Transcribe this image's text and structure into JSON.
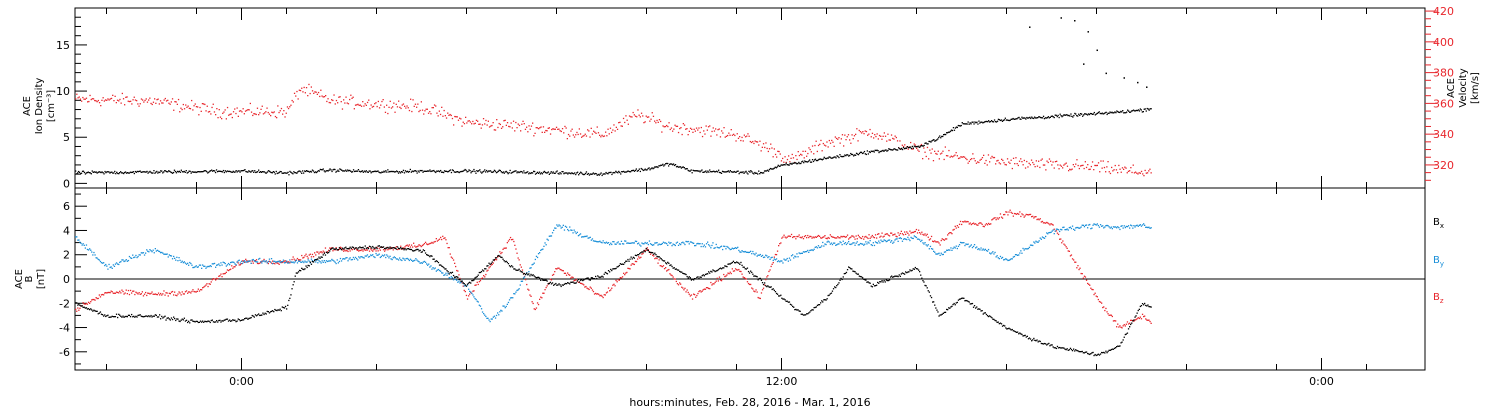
{
  "xlabel": "hours:minutes, Feb. 28, 2016 - Mar. 1, 2016",
  "x_ticks": [
    "0:00",
    "12:00",
    "0:00"
  ],
  "chart_data": [
    {
      "type": "scatter",
      "title": "",
      "x_unit": "hours since 2016-02-28 00:00",
      "xlim": [
        -3.7,
        26.3
      ],
      "data_xlim": [
        -3.7,
        20.2
      ],
      "ylabel_left": [
        "ACE",
        "Ion Density",
        "[cm⁻³]"
      ],
      "ylabel_right": [
        "ACE",
        "Velocity",
        "[km/s]"
      ],
      "ylim_left": [
        -0.5,
        19
      ],
      "ylim_right": [
        305,
        422
      ],
      "left_ticks": [
        "0",
        "5",
        "10",
        "15"
      ],
      "right_ticks": [
        "320",
        "340",
        "360",
        "380",
        "400",
        "420"
      ],
      "series": [
        {
          "axis": "left",
          "color": "#000000",
          "x": [
            -3.7,
            -2,
            0,
            1,
            2,
            3,
            4,
            5,
            6,
            7,
            8,
            9,
            9.5,
            10,
            11,
            11.5,
            12,
            13,
            14,
            15,
            15.5,
            16,
            17,
            18,
            19,
            20,
            20.2
          ],
          "values": [
            1.2,
            1.3,
            1.4,
            1.2,
            1.5,
            1.3,
            1.4,
            1.4,
            1.3,
            1.2,
            1.1,
            1.6,
            2.2,
            1.4,
            1.3,
            1.2,
            2.0,
            2.8,
            3.5,
            4.0,
            5.0,
            6.5,
            7.0,
            7.3,
            7.6,
            8.0,
            8.2
          ]
        },
        {
          "axis": "right",
          "color": "#e8262c",
          "x": [
            -3.7,
            -2,
            -0.5,
            1,
            1.3,
            2,
            3,
            4,
            5,
            6,
            7,
            8,
            8.8,
            9.5,
            10,
            11,
            11.8,
            12.2,
            13,
            14,
            15,
            16,
            17,
            18,
            19,
            19.8,
            20.2
          ],
          "values": [
            363,
            362,
            355,
            355,
            370,
            362,
            360,
            358,
            348,
            346,
            343,
            340,
            353,
            345,
            344,
            340,
            330,
            323,
            335,
            342,
            330,
            325,
            322,
            320,
            319,
            316,
            316
          ]
        }
      ]
    },
    {
      "type": "scatter",
      "title": "",
      "x_unit": "hours since 2016-02-28 00:00",
      "xlim": [
        -3.7,
        26.3
      ],
      "data_xlim": [
        -3.7,
        20.2
      ],
      "ylabel_left": [
        "ACE",
        "B",
        "[nT]"
      ],
      "ylim": [
        -7.5,
        7.5
      ],
      "y_ticks": [
        "-6",
        "-4",
        "-2",
        "0",
        "2",
        "4",
        "6"
      ],
      "zero_line": true,
      "legend_position": "right",
      "legend": [
        {
          "label": "B",
          "sub": "x",
          "color": "#000000"
        },
        {
          "label": "B",
          "sub": "y",
          "color": "#1a8fd8"
        },
        {
          "label": "B",
          "sub": "z",
          "color": "#e8262c"
        }
      ],
      "series": [
        {
          "name": "Bx",
          "color": "#000000",
          "x": [
            -3.7,
            -3,
            -2,
            -1,
            0,
            1,
            1.2,
            2,
            3,
            4,
            5,
            5.7,
            6,
            7,
            8,
            9,
            10,
            11,
            12,
            12.5,
            13,
            13.5,
            14,
            15,
            15.5,
            16,
            17,
            17.5,
            18,
            19,
            19.5,
            20,
            20.2
          ],
          "values": [
            -2,
            -3,
            -3,
            -3.5,
            -3.3,
            -2.3,
            0.5,
            2.5,
            2.7,
            2.4,
            -0.5,
            2.0,
            1.0,
            -0.5,
            0.3,
            2.5,
            0,
            1.5,
            -1.5,
            -3.0,
            -1.5,
            1.0,
            -0.5,
            1.0,
            -3.0,
            -1.5,
            -4.0,
            -4.8,
            -5.5,
            -6.2,
            -5.5,
            -2.0,
            -2.2
          ]
        },
        {
          "name": "By",
          "color": "#1a8fd8",
          "x": [
            -3.7,
            -3,
            -2,
            -1,
            0,
            1,
            2,
            3,
            4,
            5,
            5.5,
            6,
            7,
            8,
            9,
            10,
            11,
            12,
            13,
            14,
            15,
            15.5,
            16,
            16.5,
            17,
            18,
            19,
            19.5,
            20,
            20.2
          ],
          "values": [
            3.5,
            1,
            2.5,
            1,
            1.5,
            1.5,
            1.5,
            2.0,
            1.5,
            -0.5,
            -3.5,
            -1.5,
            4.5,
            3.0,
            3.0,
            3.0,
            2.5,
            1.5,
            3.0,
            3.0,
            3.5,
            2.0,
            3.0,
            2.5,
            1.5,
            4.0,
            4.5,
            4.3,
            4.5,
            4.2
          ]
        },
        {
          "name": "Bz",
          "color": "#e8262c",
          "x": [
            -3.7,
            -3,
            -2,
            -1,
            0,
            1,
            2,
            3,
            4,
            4.5,
            5,
            6,
            6.5,
            7,
            8,
            9,
            10,
            11,
            11.5,
            12,
            13,
            14,
            15,
            15.5,
            16,
            16.5,
            17,
            17.5,
            18,
            18.5,
            19,
            19.5,
            20,
            20.2
          ],
          "values": [
            -2.5,
            -1,
            -1.2,
            -1,
            1.5,
            1.5,
            2.5,
            2.5,
            2.8,
            3.5,
            -1.5,
            3.5,
            -2.5,
            1.0,
            -1.5,
            2.5,
            -1.5,
            1.0,
            -1.5,
            3.5,
            3.5,
            3.5,
            4.0,
            3.0,
            4.8,
            4.5,
            5.5,
            5.3,
            4.5,
            1.5,
            -1.5,
            -4,
            -3.0,
            -3.5
          ]
        }
      ]
    }
  ],
  "colors": {
    "black": "#000000",
    "red": "#e8262c",
    "blue": "#1a8fd8"
  }
}
